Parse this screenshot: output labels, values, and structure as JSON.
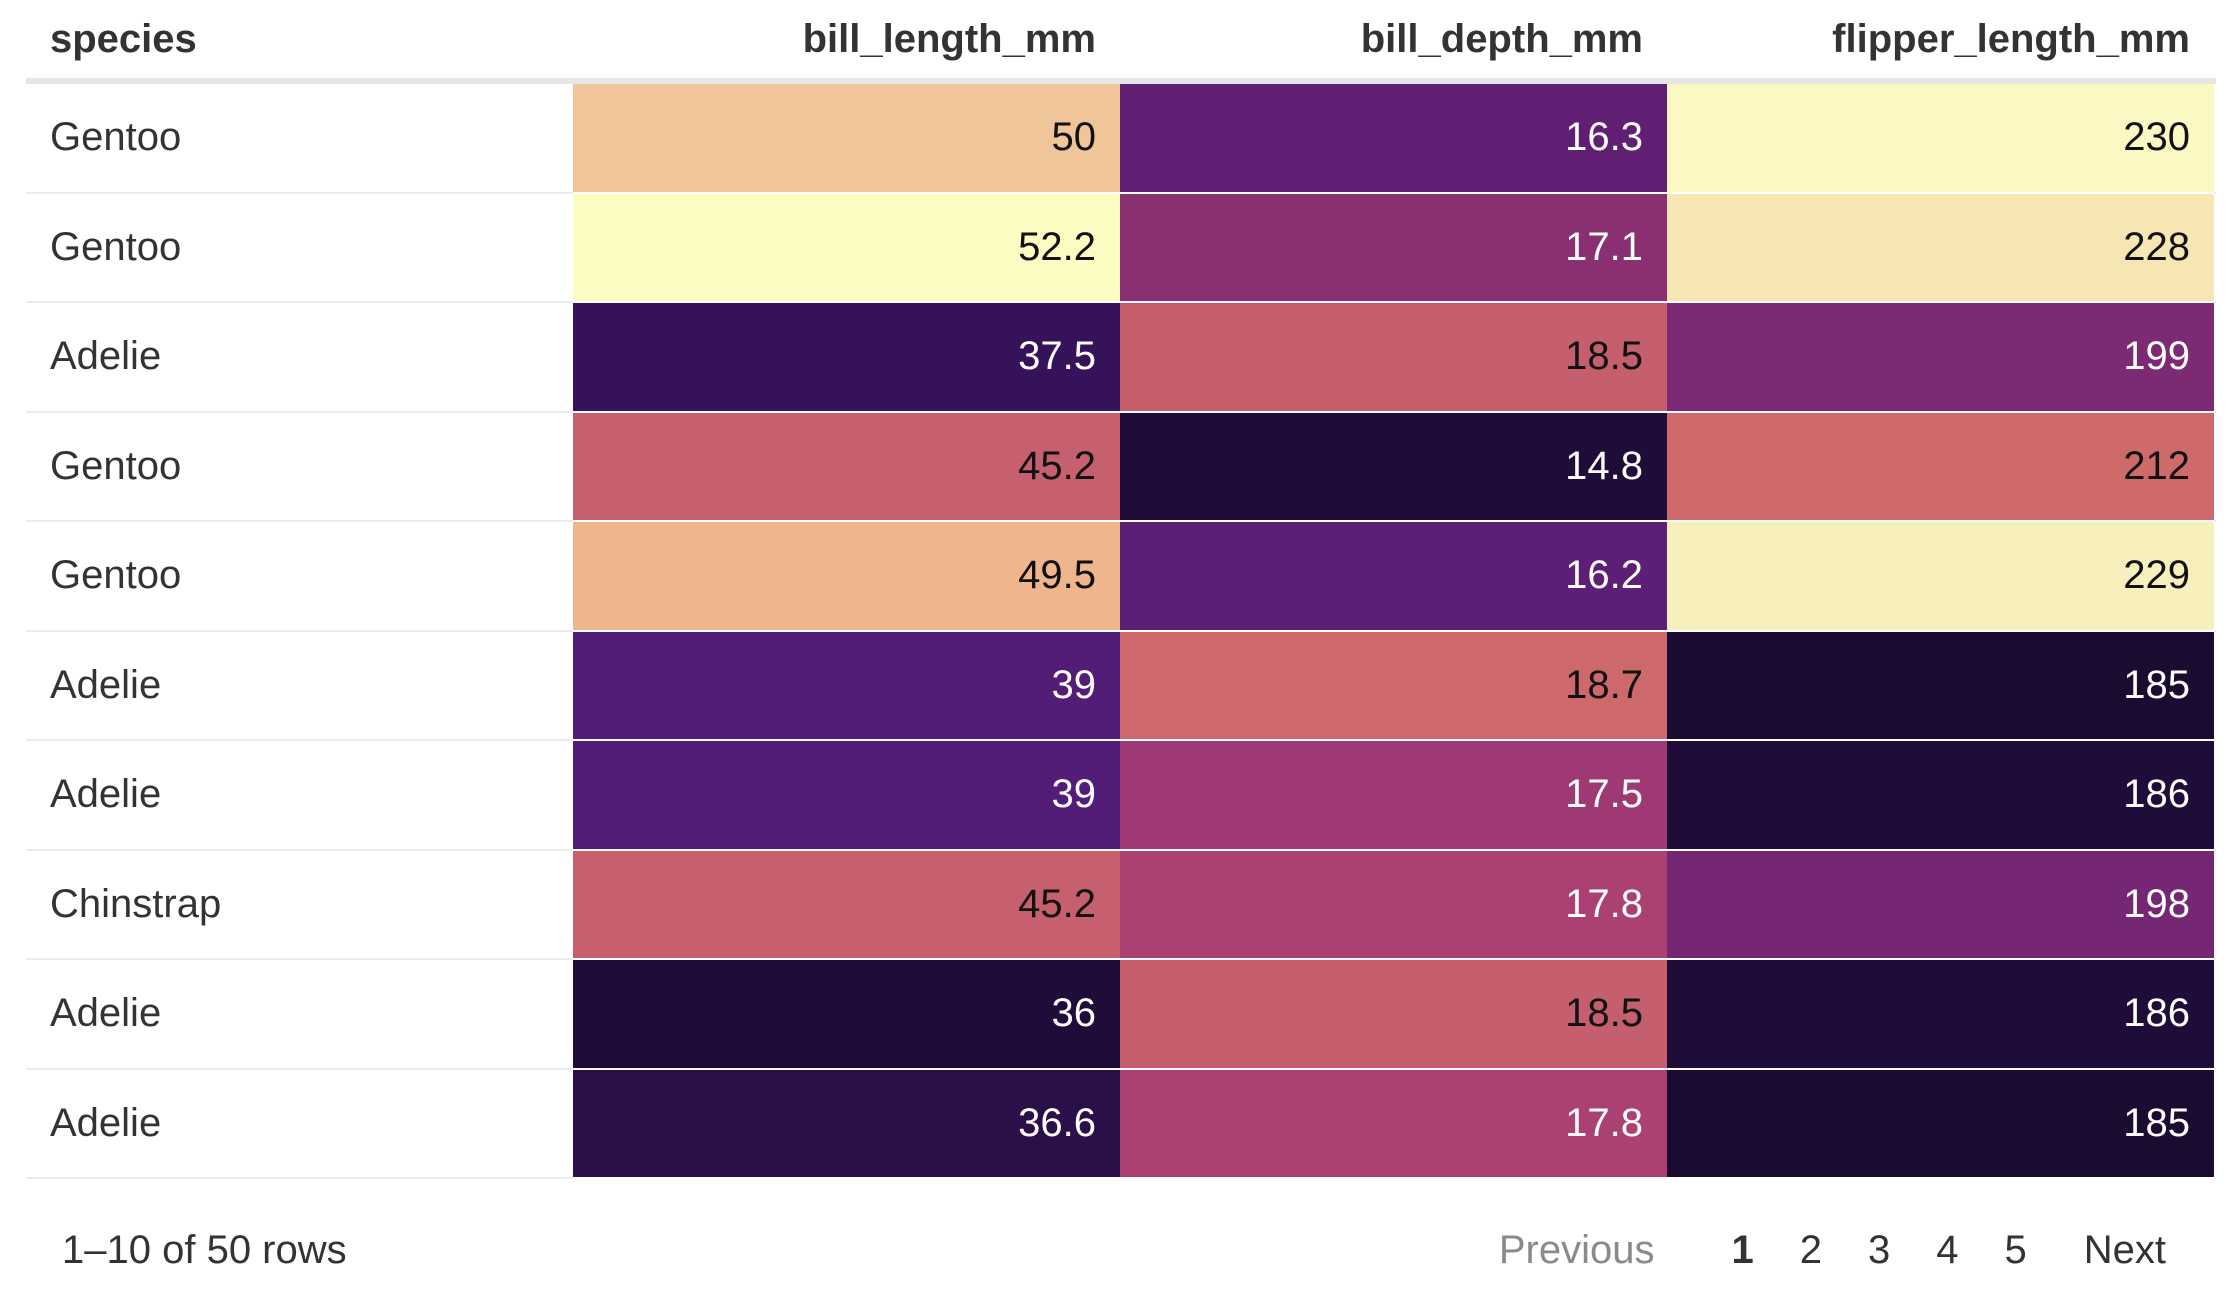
{
  "table": {
    "columns": [
      "species",
      "bill_length_mm",
      "bill_depth_mm",
      "flipper_length_mm"
    ],
    "rows": [
      {
        "species": "Gentoo",
        "values": [
          "50",
          "16.3",
          "230"
        ],
        "bg": [
          "#f1c59a",
          "#611f74",
          "#fbf8c4"
        ],
        "fg": [
          "#111111",
          "#ffffff",
          "#111111"
        ]
      },
      {
        "species": "Gentoo",
        "values": [
          "52.2",
          "17.1",
          "228"
        ],
        "bg": [
          "#fcfbc2",
          "#8a2f72",
          "#f5e6b4"
        ],
        "fg": [
          "#111111",
          "#ffffff",
          "#111111"
        ]
      },
      {
        "species": "Adelie",
        "values": [
          "37.5",
          "18.5",
          "199"
        ],
        "bg": [
          "#35125a",
          "#c65f6d",
          "#7c2a73"
        ],
        "fg": [
          "#ffffff",
          "#111111",
          "#ffffff"
        ]
      },
      {
        "species": "Gentoo",
        "values": [
          "45.2",
          "14.8",
          "212"
        ],
        "bg": [
          "#c7606e",
          "#1f0c38",
          "#cf6a6b"
        ],
        "fg": [
          "#111111",
          "#ffffff",
          "#111111"
        ]
      },
      {
        "species": "Gentoo",
        "values": [
          "49.5",
          "16.2",
          "229"
        ],
        "bg": [
          "#efb68d",
          "#5d1f76",
          "#f7f0bd"
        ],
        "fg": [
          "#111111",
          "#ffffff",
          "#111111"
        ]
      },
      {
        "species": "Adelie",
        "values": [
          "39",
          "18.7",
          "185"
        ],
        "bg": [
          "#521c77",
          "#cd696c",
          "#1c0b30"
        ],
        "fg": [
          "#ffffff",
          "#111111",
          "#ffffff"
        ]
      },
      {
        "species": "Adelie",
        "values": [
          "39",
          "17.5",
          "186"
        ],
        "bg": [
          "#521c77",
          "#9e3974",
          "#200c38"
        ],
        "fg": [
          "#ffffff",
          "#ffffff",
          "#ffffff"
        ]
      },
      {
        "species": "Chinstrap",
        "values": [
          "45.2",
          "17.8",
          "198"
        ],
        "bg": [
          "#c7606e",
          "#ab4172",
          "#762773"
        ],
        "fg": [
          "#111111",
          "#ffffff",
          "#ffffff"
        ]
      },
      {
        "species": "Adelie",
        "values": [
          "36",
          "18.5",
          "186"
        ],
        "bg": [
          "#1f0c38",
          "#c65f6d",
          "#200c38"
        ],
        "fg": [
          "#ffffff",
          "#111111",
          "#ffffff"
        ]
      },
      {
        "species": "Adelie",
        "values": [
          "36.6",
          "17.8",
          "185"
        ],
        "bg": [
          "#2a0f48",
          "#ab4172",
          "#1c0b30"
        ],
        "fg": [
          "#ffffff",
          "#ffffff",
          "#ffffff"
        ]
      }
    ]
  },
  "footer": {
    "row_info": "1–10 of 50 rows",
    "previous_label": "Previous",
    "next_label": "Next",
    "pages": [
      "1",
      "2",
      "3",
      "4",
      "5"
    ],
    "current_page": "1"
  }
}
